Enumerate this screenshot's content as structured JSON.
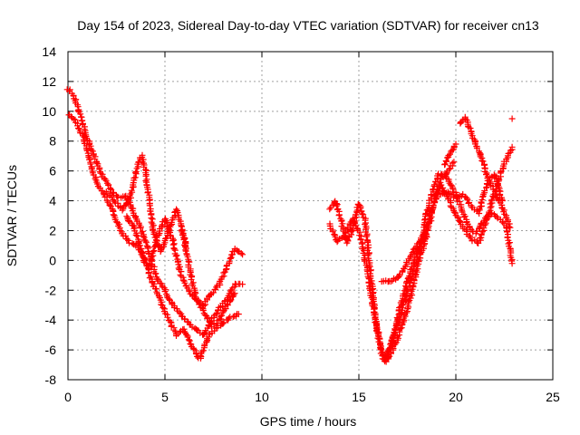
{
  "chart_data": {
    "type": "scatter",
    "title": "Day 154 of 2023, Sidereal Day-to-day VTEC variation (SDTVAR) for receiver cn13",
    "xlabel": "GPS time / hours",
    "ylabel": "SDTVAR / TECUs",
    "xlim": [
      0,
      25
    ],
    "ylim": [
      -8,
      14
    ],
    "x_ticks": [
      "0",
      "5",
      "10",
      "15",
      "20",
      "25"
    ],
    "y_ticks": [
      "-8",
      "-6",
      "-4",
      "-2",
      "0",
      "2",
      "4",
      "6",
      "8",
      "10",
      "12",
      "14"
    ],
    "grid": true,
    "marker": "+",
    "series_color": "#ff0000",
    "series": [
      {
        "name": "SDTVAR",
        "tracks": [
          [
            [
              0.0,
              11.5
            ],
            [
              0.3,
              11.0
            ],
            [
              0.6,
              9.8
            ],
            [
              1.0,
              8.2
            ],
            [
              1.4,
              6.8
            ],
            [
              1.8,
              5.6
            ],
            [
              2.2,
              4.8
            ],
            [
              2.6,
              4.2
            ],
            [
              3.0,
              4.3
            ],
            [
              3.4,
              3.2
            ],
            [
              3.8,
              2.0
            ],
            [
              4.2,
              0.4
            ],
            [
              4.6,
              -1.2
            ],
            [
              5.0,
              -2.0
            ],
            [
              5.4,
              -3.0
            ],
            [
              5.8,
              -3.6
            ],
            [
              6.2,
              -4.2
            ],
            [
              6.6,
              -4.6
            ],
            [
              7.0,
              -5.0
            ],
            [
              7.4,
              -4.0
            ],
            [
              7.8,
              -3.2
            ],
            [
              8.2,
              -2.6
            ],
            [
              8.6,
              -1.6
            ],
            [
              9.0,
              -1.6
            ]
          ],
          [
            [
              0.0,
              9.8
            ],
            [
              0.4,
              9.4
            ],
            [
              0.8,
              8.2
            ],
            [
              1.2,
              6.2
            ],
            [
              1.6,
              5.0
            ],
            [
              2.0,
              4.2
            ],
            [
              2.4,
              3.0
            ],
            [
              2.8,
              1.8
            ],
            [
              3.2,
              1.2
            ],
            [
              3.6,
              1.0
            ],
            [
              4.0,
              -0.2
            ],
            [
              4.4,
              -1.6
            ],
            [
              4.8,
              -2.8
            ],
            [
              5.2,
              -4.0
            ],
            [
              5.6,
              -5.0
            ],
            [
              6.0,
              -4.6
            ],
            [
              6.4,
              -5.8
            ],
            [
              6.8,
              -6.6
            ],
            [
              7.2,
              -5.2
            ],
            [
              7.6,
              -4.6
            ],
            [
              8.0,
              -4.2
            ],
            [
              8.4,
              -3.8
            ],
            [
              8.8,
              -3.6
            ]
          ],
          [
            [
              2.0,
              4.6
            ],
            [
              2.4,
              4.0
            ],
            [
              2.8,
              3.4
            ],
            [
              3.2,
              4.2
            ],
            [
              3.6,
              6.4
            ],
            [
              3.8,
              7.0
            ],
            [
              4.0,
              6.0
            ],
            [
              4.2,
              4.0
            ],
            [
              4.4,
              2.0
            ],
            [
              4.8,
              0.6
            ],
            [
              5.2,
              2.0
            ],
            [
              5.6,
              3.4
            ],
            [
              5.9,
              2.0
            ],
            [
              6.2,
              0.0
            ],
            [
              6.6,
              -2.6
            ],
            [
              7.0,
              -3.0
            ],
            [
              7.4,
              -2.2
            ],
            [
              7.8,
              -1.6
            ],
            [
              8.2,
              -0.4
            ],
            [
              8.6,
              0.8
            ],
            [
              9.0,
              0.4
            ]
          ],
          [
            [
              3.0,
              3.0
            ],
            [
              3.4,
              2.2
            ],
            [
              3.8,
              0.6
            ],
            [
              4.2,
              -0.6
            ],
            [
              4.6,
              1.6
            ],
            [
              5.0,
              2.8
            ],
            [
              5.4,
              1.4
            ],
            [
              5.8,
              -0.8
            ],
            [
              6.2,
              -2.0
            ],
            [
              6.6,
              -2.6
            ],
            [
              7.0,
              -3.4
            ],
            [
              7.4,
              -4.4
            ],
            [
              7.8,
              -4.0
            ],
            [
              8.2,
              -3.0
            ],
            [
              8.6,
              -2.2
            ]
          ],
          [
            [
              5.8,
              2.0
            ],
            [
              6.0,
              1.4
            ],
            [
              6.1,
              0.8
            ]
          ],
          [
            [
              13.5,
              3.4
            ],
            [
              13.8,
              4.0
            ],
            [
              14.1,
              2.6
            ],
            [
              14.4,
              1.2
            ],
            [
              14.7,
              2.2
            ],
            [
              15.0,
              3.8
            ],
            [
              15.3,
              2.8
            ],
            [
              15.5,
              0.4
            ],
            [
              15.7,
              -2.0
            ],
            [
              15.9,
              -4.2
            ],
            [
              16.1,
              -5.8
            ],
            [
              16.3,
              -6.8
            ],
            [
              16.6,
              -6.4
            ],
            [
              17.0,
              -5.2
            ],
            [
              17.4,
              -3.6
            ],
            [
              17.8,
              -1.8
            ],
            [
              18.1,
              0.0
            ],
            [
              18.3,
              0.8
            ],
            [
              18.6,
              2.2
            ],
            [
              18.9,
              4.0
            ],
            [
              19.2,
              5.4
            ],
            [
              19.6,
              6.0
            ],
            [
              19.9,
              6.6
            ]
          ],
          [
            [
              13.5,
              2.4
            ],
            [
              13.9,
              1.2
            ],
            [
              14.3,
              1.8
            ],
            [
              14.7,
              2.8
            ],
            [
              15.1,
              1.6
            ],
            [
              15.4,
              -0.4
            ],
            [
              15.7,
              -2.8
            ],
            [
              16.0,
              -5.2
            ],
            [
              16.3,
              -6.6
            ],
            [
              16.7,
              -5.6
            ],
            [
              17.1,
              -3.8
            ],
            [
              17.5,
              -2.2
            ],
            [
              17.9,
              -0.2
            ],
            [
              18.2,
              1.2
            ],
            [
              18.5,
              3.2
            ],
            [
              18.8,
              4.6
            ],
            [
              19.1,
              5.8
            ],
            [
              19.4,
              5.8
            ],
            [
              19.8,
              5.0
            ],
            [
              20.2,
              3.8
            ],
            [
              20.6,
              2.4
            ],
            [
              21.0,
              1.8
            ],
            [
              21.4,
              2.6
            ],
            [
              21.8,
              3.2
            ],
            [
              22.2,
              2.8
            ],
            [
              22.6,
              2.4
            ],
            [
              22.9,
              -0.2
            ]
          ],
          [
            [
              16.4,
              -6.8
            ],
            [
              16.8,
              -4.8
            ],
            [
              17.2,
              -2.8
            ],
            [
              17.6,
              -1.0
            ],
            [
              18.0,
              0.6
            ],
            [
              18.4,
              1.6
            ],
            [
              18.8,
              3.6
            ],
            [
              19.2,
              5.0
            ],
            [
              19.6,
              4.2
            ],
            [
              20.0,
              3.0
            ],
            [
              20.4,
              2.2
            ],
            [
              20.8,
              1.4
            ],
            [
              21.2,
              1.2
            ],
            [
              21.6,
              2.8
            ],
            [
              22.0,
              4.6
            ],
            [
              22.4,
              3.6
            ],
            [
              22.8,
              2.2
            ]
          ],
          [
            [
              16.2,
              -1.4
            ],
            [
              16.6,
              -1.4
            ],
            [
              17.0,
              -1.2
            ],
            [
              17.4,
              -0.4
            ],
            [
              17.8,
              0.6
            ],
            [
              18.2,
              1.4
            ]
          ],
          [
            [
              20.2,
              9.2
            ],
            [
              20.5,
              9.6
            ],
            [
              20.8,
              8.6
            ],
            [
              21.1,
              7.6
            ],
            [
              21.4,
              6.6
            ],
            [
              21.7,
              5.4
            ],
            [
              22.0,
              4.6
            ],
            [
              22.3,
              5.8
            ],
            [
              22.6,
              6.8
            ],
            [
              22.9,
              7.6
            ]
          ],
          [
            [
              19.4,
              6.4
            ],
            [
              19.8,
              7.4
            ],
            [
              20.0,
              7.8
            ]
          ],
          [
            [
              19.2,
              4.4
            ],
            [
              19.6,
              4.6
            ],
            [
              20.0,
              4.2
            ],
            [
              20.4,
              4.4
            ],
            [
              20.8,
              3.6
            ],
            [
              21.2,
              3.2
            ],
            [
              21.6,
              5.2
            ],
            [
              22.0,
              5.8
            ],
            [
              22.4,
              4.0
            ]
          ],
          [
            [
              22.9,
              9.5
            ]
          ]
        ]
      }
    ]
  }
}
